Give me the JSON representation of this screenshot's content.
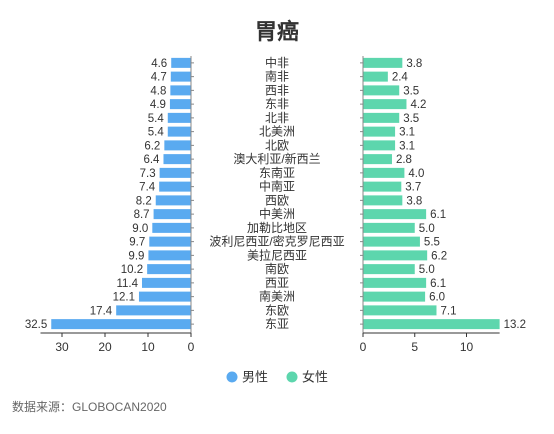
{
  "chart_data": {
    "type": "bar",
    "title": "胃癌",
    "categories": [
      "中非",
      "南非",
      "西非",
      "东非",
      "北非",
      "北美洲",
      "北欧",
      "澳大利亚/新西兰",
      "东南亚",
      "中南亚",
      "西欧",
      "中美洲",
      "加勒比地区",
      "波利尼西亚/密克罗尼西亚",
      "美拉尼西亚",
      "南欧",
      "西亚",
      "南美洲",
      "东欧",
      "东亚"
    ],
    "series": [
      {
        "name": "男性",
        "color": "#5aaaf0",
        "values": [
          4.6,
          4.7,
          4.8,
          4.9,
          5.4,
          5.4,
          6.2,
          6.4,
          7.3,
          7.4,
          8.2,
          8.7,
          9.0,
          9.7,
          9.9,
          10.2,
          11.4,
          12.1,
          17.4,
          32.5
        ],
        "xlim": [
          0,
          35
        ],
        "ticks": [
          0,
          10,
          20,
          30
        ]
      },
      {
        "name": "女性",
        "color": "#5dd6ad",
        "values": [
          3.8,
          2.4,
          3.5,
          4.2,
          3.5,
          3.1,
          3.1,
          2.8,
          4.0,
          3.7,
          3.8,
          6.1,
          5.0,
          5.5,
          6.2,
          5.0,
          6.1,
          6.0,
          7.1,
          13.2
        ],
        "xlim": [
          0,
          13.2
        ],
        "ticks": [
          0,
          5,
          10
        ]
      }
    ],
    "legend_position": "bottom-center",
    "grid": false
  },
  "source": "数据来源：GLOBOCAN2020"
}
